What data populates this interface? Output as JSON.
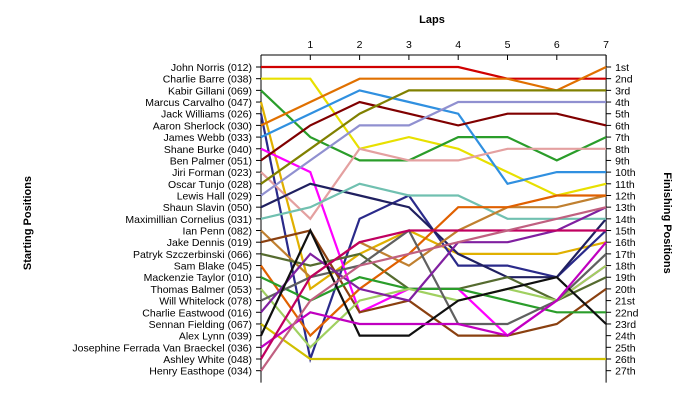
{
  "chart_data": {
    "type": "line",
    "title": "",
    "xlabel": "Laps",
    "ylabel": "Starting Positions",
    "y2label": "Finishing Positions",
    "grid": false,
    "legend": "none",
    "laps": [
      0,
      1,
      2,
      3,
      4,
      5,
      6,
      7
    ],
    "lap_tick_labels": [
      "1",
      "2",
      "3",
      "4",
      "5",
      "6",
      "7"
    ],
    "finishing_labels": [
      "1st",
      "2nd",
      "3rd",
      "4th",
      "5th",
      "6th",
      "7th",
      "8th",
      "9th",
      "10th",
      "11th",
      "12th",
      "13th",
      "14th",
      "15th",
      "16th",
      "17th",
      "18th",
      "19th",
      "20th",
      "21st",
      "22nd",
      "23rd",
      "24th",
      "25th",
      "26th",
      "27th"
    ],
    "series": [
      {
        "name": "John Norris (012)",
        "color": "#d00000",
        "positions": [
          1,
          1,
          1,
          1,
          1,
          2,
          2,
          2
        ]
      },
      {
        "name": "Charlie Barre (038)",
        "color": "#e8e000",
        "positions": [
          2,
          2,
          8,
          7,
          8,
          10,
          12,
          11
        ]
      },
      {
        "name": "Kabir Gillani (069)",
        "color": "#2a9d2a",
        "positions": [
          3,
          7,
          9,
          9,
          7,
          7,
          9,
          7
        ]
      },
      {
        "name": "Marcus Carvalho (047)",
        "color": "#e0b000",
        "positions": [
          4,
          20,
          17,
          15,
          17,
          17,
          17,
          16
        ]
      },
      {
        "name": "Jack Williams (026)",
        "color": "#2a2a8a",
        "positions": [
          5,
          26,
          14,
          12,
          18,
          18,
          19,
          15
        ]
      },
      {
        "name": "Aaron Sherlock (030)",
        "color": "#e07000",
        "positions": [
          6,
          4,
          2,
          2,
          2,
          2,
          3,
          1
        ]
      },
      {
        "name": "James Webb (033)",
        "color": "#3090e0",
        "positions": [
          7,
          5,
          3,
          4,
          5,
          11,
          10,
          10
        ]
      },
      {
        "name": "Shane Burke (040)",
        "color": "#ff00ff",
        "positions": [
          8,
          10,
          22,
          20,
          20,
          24,
          21,
          18
        ]
      },
      {
        "name": "Ben Palmer (051)",
        "color": "#800000",
        "positions": [
          9,
          6,
          4,
          5,
          6,
          5,
          5,
          6
        ]
      },
      {
        "name": "Jiri Forman (023)",
        "color": "#e4a0a0",
        "positions": [
          10,
          14,
          8,
          9,
          9,
          8,
          8,
          8
        ]
      },
      {
        "name": "Oscar Tunjo (028)",
        "color": "#808000",
        "positions": [
          11,
          8,
          5,
          3,
          3,
          3,
          3,
          3
        ]
      },
      {
        "name": "Lewis Hall (029)",
        "color": "#9090d0",
        "positions": [
          12,
          9,
          6,
          6,
          4,
          4,
          4,
          4
        ]
      },
      {
        "name": "Shaun Slavin (050)",
        "color": "#202060",
        "positions": [
          13,
          11,
          12,
          13,
          17,
          19,
          19,
          14
        ]
      },
      {
        "name": "Maximillian Cornelius (031)",
        "color": "#70c0b0",
        "positions": [
          14,
          13,
          11,
          12,
          12,
          14,
          14,
          14
        ]
      },
      {
        "name": "Ian Penn (082)",
        "color": "#c08030",
        "positions": [
          15,
          19,
          16,
          18,
          15,
          13,
          13,
          12
        ]
      },
      {
        "name": "Jake Dennis (019)",
        "color": "#8a4010",
        "positions": [
          16,
          15,
          22,
          21,
          24,
          24,
          23,
          20
        ]
      },
      {
        "name": "Patryk Szczerbinski (066)",
        "color": "#556b2f",
        "positions": [
          17,
          18,
          17,
          20,
          20,
          19,
          21,
          19
        ]
      },
      {
        "name": "Sam Blake (045)",
        "color": "#e06000",
        "positions": [
          18,
          24,
          20,
          17,
          13,
          13,
          12,
          12
        ]
      },
      {
        "name": "Mackenzie Taylor (010)",
        "color": "#2a9d2a",
        "positions": [
          19,
          21,
          19,
          20,
          20,
          21,
          22,
          22
        ]
      },
      {
        "name": "Thomas Balmer (053)",
        "color": "#a0d060",
        "positions": [
          20,
          25,
          21,
          20,
          21,
          20,
          21,
          18
        ]
      },
      {
        "name": "Will Whitelock (078)",
        "color": "#606060",
        "positions": [
          21,
          19,
          18,
          15,
          23,
          23,
          21,
          17
        ]
      },
      {
        "name": "Charlie Eastwood (016)",
        "color": "#8020a0",
        "positions": [
          22,
          17,
          20,
          21,
          16,
          16,
          15,
          13
        ]
      },
      {
        "name": "Sennan Fielding (067)",
        "color": "#d0c000",
        "positions": [
          23,
          26,
          26,
          26,
          26,
          26,
          26,
          26
        ]
      },
      {
        "name": "Alex Lynn (039)",
        "color": "#101010",
        "positions": [
          24,
          15,
          24,
          24,
          21,
          20,
          19,
          23
        ]
      },
      {
        "name": "Josephine Ferrada Van Braeckel (036)",
        "color": "#c000c0",
        "positions": [
          25,
          22,
          23,
          23,
          23,
          24,
          21,
          16
        ]
      },
      {
        "name": "Ashley White (048)",
        "color": "#c00060",
        "positions": [
          26,
          19,
          16,
          15,
          15,
          15,
          15,
          15
        ]
      },
      {
        "name": "Henry Easthope (034)",
        "color": "#c06080",
        "positions": [
          27,
          21,
          18,
          17,
          16,
          15,
          14,
          13
        ]
      }
    ]
  }
}
